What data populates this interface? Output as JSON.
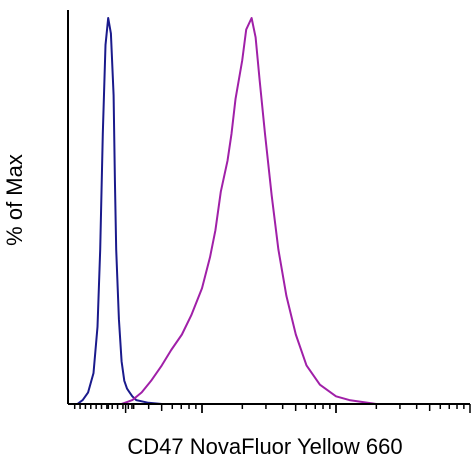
{
  "chart_data": {
    "type": "line",
    "title": "",
    "xlabel": "CD47 NovaFluor Yellow 660",
    "ylabel": "% of Max",
    "xscale": "log",
    "grid": false,
    "legend": "none",
    "axis_color": "#000000",
    "series": [
      {
        "color": "#1a1a8c",
        "x": [
          0.0,
          0.07,
          0.11,
          0.15,
          0.19,
          0.22,
          0.24,
          0.26,
          0.28,
          0.3,
          0.32,
          0.34,
          0.35,
          0.36,
          0.38,
          0.4,
          0.42,
          0.44,
          0.46,
          0.48,
          0.51,
          0.55,
          0.6,
          0.7,
          0.8,
          1.2
        ],
        "y": [
          0,
          0,
          1,
          3,
          8,
          20,
          40,
          70,
          93,
          100,
          96,
          80,
          58,
          40,
          22,
          11,
          6,
          4,
          3,
          2,
          1,
          0.7,
          0.3,
          0,
          0,
          0
        ]
      },
      {
        "color": "#a020a8",
        "x": [
          0.4,
          0.48,
          0.55,
          0.62,
          0.7,
          0.77,
          0.85,
          0.92,
          1.0,
          1.06,
          1.1,
          1.14,
          1.19,
          1.22,
          1.25,
          1.3,
          1.33,
          1.37,
          1.4,
          1.43,
          1.47,
          1.52,
          1.57,
          1.63,
          1.7,
          1.78,
          1.88,
          2.0,
          2.1,
          2.3,
          3.0
        ],
        "y": [
          0,
          1,
          3,
          6,
          10,
          14,
          18,
          23,
          30,
          38,
          45,
          55,
          63,
          70,
          79,
          89,
          97,
          100,
          95,
          84,
          70,
          54,
          40,
          28,
          18,
          10,
          5,
          2,
          1,
          0,
          0
        ]
      }
    ]
  }
}
